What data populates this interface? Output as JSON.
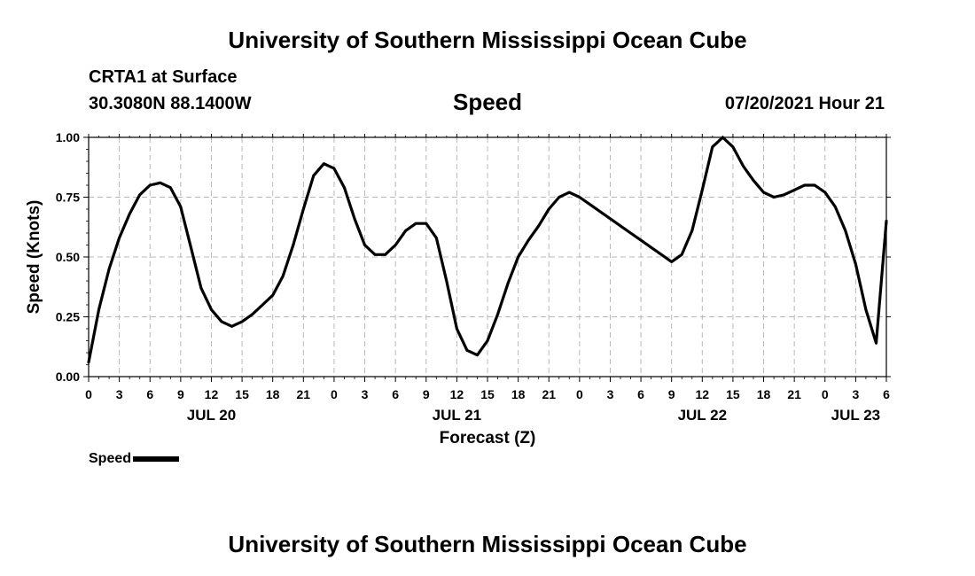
{
  "header": {
    "title": "University of Southern Mississippi Ocean Cube",
    "station": "CRTA1 at Surface",
    "coords": "30.3080N  88.1400W",
    "variable": "Speed",
    "datetime": "07/20/2021 Hour 21",
    "footer_title": "University of Southern Mississippi Ocean Cube"
  },
  "legend": {
    "label": "Speed"
  },
  "chart_data": {
    "type": "line",
    "title": "Speed",
    "xlabel": "Forecast (Z)",
    "ylabel": "Speed (Knots)",
    "xlim": [
      0,
      78
    ],
    "ylim": [
      0,
      1
    ],
    "grid": true,
    "x_tick_values": [
      0,
      3,
      6,
      9,
      12,
      15,
      18,
      21,
      24,
      27,
      30,
      33,
      36,
      39,
      42,
      45,
      48,
      51,
      54,
      57,
      60,
      63,
      66,
      69,
      72,
      75,
      78
    ],
    "x_tick_labels": [
      "0",
      "3",
      "6",
      "9",
      "12",
      "15",
      "18",
      "21",
      "0",
      "3",
      "6",
      "9",
      "12",
      "15",
      "18",
      "21",
      "0",
      "3",
      "6",
      "9",
      "12",
      "15",
      "18",
      "21",
      "0",
      "3",
      "6"
    ],
    "y_ticks": [
      0,
      0.25,
      0.5,
      0.75,
      1.0
    ],
    "y_tick_labels": [
      "0.00",
      "0.25",
      "0.50",
      "0.75",
      "1.00"
    ],
    "date_labels": [
      {
        "label": "JUL 20",
        "x": 12
      },
      {
        "label": "JUL 21",
        "x": 36
      },
      {
        "label": "JUL 22",
        "x": 60
      },
      {
        "label": "JUL 23",
        "x": 75
      }
    ],
    "series": [
      {
        "name": "Speed",
        "color": "#000000",
        "x": [
          0,
          1,
          2,
          3,
          4,
          5,
          6,
          7,
          8,
          9,
          10,
          11,
          12,
          13,
          14,
          15,
          16,
          17,
          18,
          19,
          20,
          21,
          22,
          23,
          24,
          25,
          26,
          27,
          28,
          29,
          30,
          31,
          32,
          33,
          34,
          35,
          36,
          37,
          38,
          39,
          40,
          41,
          42,
          43,
          44,
          45,
          46,
          47,
          48,
          49,
          50,
          51,
          52,
          53,
          54,
          55,
          56,
          57,
          58,
          59,
          60,
          61,
          62,
          63,
          64,
          65,
          66,
          67,
          68,
          69,
          70,
          71,
          72,
          73,
          74,
          75,
          76,
          77,
          78
        ],
        "values": [
          0.06,
          0.28,
          0.45,
          0.58,
          0.68,
          0.76,
          0.8,
          0.81,
          0.79,
          0.71,
          0.54,
          0.37,
          0.28,
          0.23,
          0.21,
          0.23,
          0.26,
          0.3,
          0.34,
          0.42,
          0.55,
          0.7,
          0.84,
          0.89,
          0.87,
          0.79,
          0.66,
          0.55,
          0.51,
          0.51,
          0.55,
          0.61,
          0.64,
          0.64,
          0.58,
          0.4,
          0.2,
          0.11,
          0.09,
          0.15,
          0.26,
          0.39,
          0.5,
          0.57,
          0.63,
          0.7,
          0.75,
          0.77,
          0.75,
          0.72,
          0.69,
          0.66,
          0.63,
          0.6,
          0.57,
          0.54,
          0.51,
          0.48,
          0.51,
          0.61,
          0.78,
          0.96,
          1.0,
          0.96,
          0.88,
          0.82,
          0.77,
          0.75,
          0.76,
          0.78,
          0.8,
          0.8,
          0.77,
          0.71,
          0.61,
          0.47,
          0.28,
          0.14,
          0.65
        ]
      }
    ]
  }
}
